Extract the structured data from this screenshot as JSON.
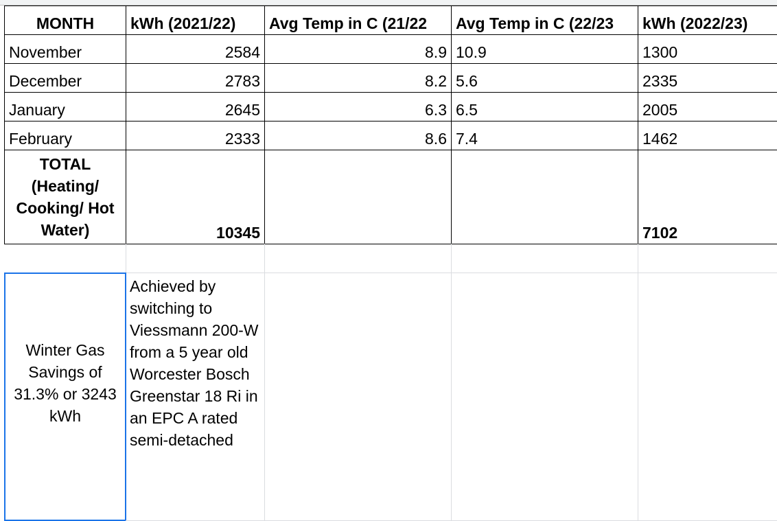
{
  "table": {
    "header": [
      "MONTH",
      "kWh (2021/22)",
      "Avg Temp in C (21/22",
      "Avg Temp in C (22/23",
      "kWh (2022/23)"
    ],
    "rows": [
      [
        "November",
        "2584",
        "8.9",
        "10.9",
        "1300"
      ],
      [
        "December",
        "2783",
        "8.2",
        "5.6",
        "2335"
      ],
      [
        "January",
        "2645",
        "6.3",
        "6.5",
        "2005"
      ],
      [
        "February",
        "2333",
        "8.6",
        "7.4",
        "1462"
      ]
    ],
    "total": {
      "label": "TOTAL (Heating/ Cooking/ Hot Water)",
      "kwh_2021_22": "10345",
      "kwh_2022_23": "7102"
    },
    "note": {
      "savings": "Winter Gas Savings of 31.3% or 3243 kWh",
      "details": "Achieved by switching to Viessmann 200-W from a 5 year old Worcester Bosch Greenstar 18 Ri in an EPC A rated semi-detached"
    }
  }
}
